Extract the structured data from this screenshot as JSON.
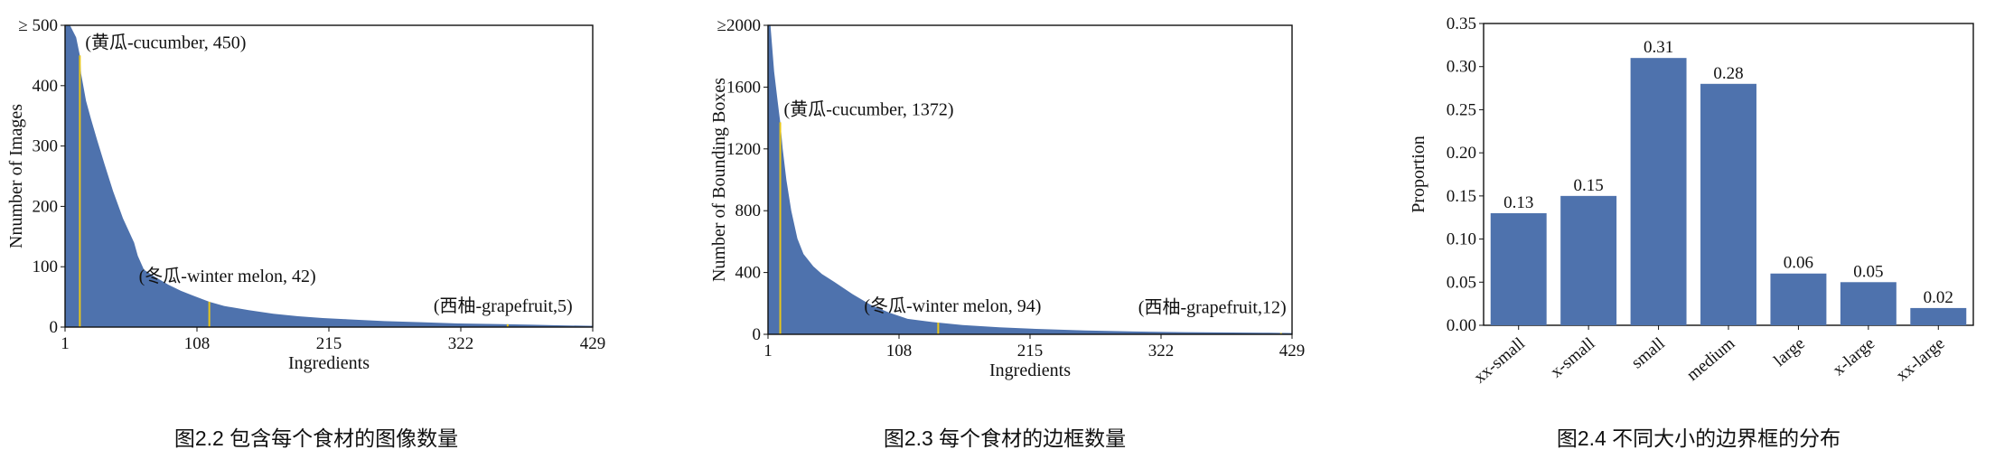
{
  "captions": {
    "c1": "图2.2 包含每个食材的图像数量",
    "c2": "图2.3 每个食材的边框数量",
    "c3": "图2.4 不同大小的边界框的分布"
  },
  "chart_data": [
    {
      "type": "area",
      "xlabel": "Ingredients",
      "ylabel": "Nnumber of Images",
      "xlim": [
        1,
        429
      ],
      "ylim": [
        0,
        500
      ],
      "x_ticks": [
        "1",
        "108",
        "215",
        "322",
        "429"
      ],
      "y_ticks": [
        "0",
        "100",
        "200",
        "300",
        "400",
        "≥ 500"
      ],
      "series_color": "#4e72ad",
      "highlight_color": "#e8c619",
      "x": [
        1,
        5,
        10,
        13,
        14,
        18,
        22,
        27,
        33,
        40,
        48,
        57,
        60,
        65,
        75,
        85,
        95,
        105,
        118,
        130,
        150,
        170,
        190,
        210,
        230,
        260,
        290,
        320,
        350,
        380,
        400,
        429
      ],
      "y": [
        500,
        500,
        480,
        450,
        420,
        375,
        345,
        310,
        270,
        225,
        180,
        140,
        118,
        95,
        82,
        70,
        60,
        52,
        42,
        35,
        28,
        22,
        18,
        15,
        13,
        10,
        8,
        6,
        5,
        4,
        3,
        2
      ],
      "annotations": [
        {
          "x": 13,
          "y": 450,
          "text": "(黄瓜-cucumber, 450)"
        },
        {
          "x": 118,
          "y": 42,
          "text": "(冬瓜-winter melon, 42)"
        },
        {
          "x": 360,
          "y": 5,
          "text": "(西柚-grapefruit,5)"
        }
      ]
    },
    {
      "type": "area",
      "xlabel": "Ingredients",
      "ylabel": "Number of Bounding Boxes",
      "xlim": [
        1,
        429
      ],
      "ylim": [
        0,
        2000
      ],
      "x_ticks": [
        "1",
        "108",
        "215",
        "322",
        "429"
      ],
      "y_ticks": [
        "0",
        "400",
        "800",
        "1200",
        "1600",
        "≥2000"
      ],
      "series_color": "#4e72ad",
      "highlight_color": "#e8c619",
      "x": [
        1,
        3,
        6,
        9,
        11,
        13,
        16,
        20,
        25,
        30,
        38,
        45,
        55,
        70,
        85,
        100,
        115,
        135,
        160,
        190,
        220,
        260,
        300,
        340,
        380,
        410,
        429
      ],
      "y": [
        2000,
        2000,
        1700,
        1500,
        1372,
        1200,
        1000,
        800,
        620,
        520,
        440,
        390,
        340,
        260,
        190,
        140,
        100,
        80,
        60,
        45,
        35,
        25,
        18,
        14,
        12,
        10,
        8
      ],
      "annotations": [
        {
          "x": 11,
          "y": 1372,
          "text": "(黄瓜-cucumber, 1372)"
        },
        {
          "x": 140,
          "y": 94,
          "text": "(冬瓜-winter melon, 94)"
        },
        {
          "x": 420,
          "y": 12,
          "text": "(西柚-grapefruit,12)"
        }
      ]
    },
    {
      "type": "bar",
      "categories": [
        "xx-small",
        "x-small",
        "small",
        "medium",
        "large",
        "x-large",
        "xx-large"
      ],
      "values": [
        0.13,
        0.15,
        0.31,
        0.28,
        0.06,
        0.05,
        0.02
      ],
      "data_labels": [
        "0.13",
        "0.15",
        "0.31",
        "0.28",
        "0.06",
        "0.05",
        "0.02"
      ],
      "xlabel": "",
      "ylabel": "Proportion",
      "ylim": [
        0,
        0.35
      ],
      "y_ticks": [
        "0.00",
        "0.05",
        "0.10",
        "0.15",
        "0.20",
        "0.25",
        "0.30",
        "0.35"
      ],
      "bar_color": "#4e72ad"
    }
  ]
}
